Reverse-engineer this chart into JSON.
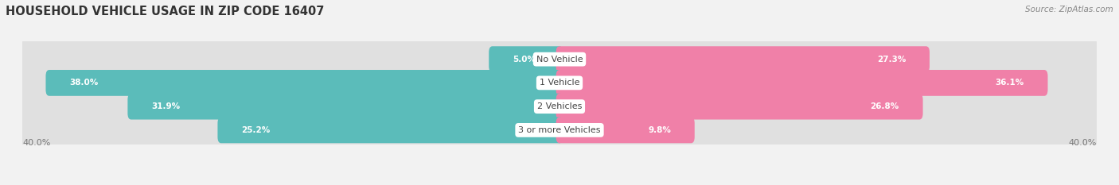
{
  "title": "HOUSEHOLD VEHICLE USAGE IN ZIP CODE 16407",
  "source": "Source: ZipAtlas.com",
  "categories": [
    "No Vehicle",
    "1 Vehicle",
    "2 Vehicles",
    "3 or more Vehicles"
  ],
  "owner_values": [
    5.0,
    38.0,
    31.9,
    25.2
  ],
  "renter_values": [
    27.3,
    36.1,
    26.8,
    9.8
  ],
  "owner_color": "#5bbcba",
  "renter_color": "#f080a8",
  "axis_label": "40.0%",
  "xlim": 40.0,
  "bg_color": "#f2f2f2",
  "bar_bg_color": "#e0e0e0",
  "title_fontsize": 10.5,
  "source_fontsize": 7.5,
  "bar_height": 0.58,
  "label_fontsize": 8.0,
  "value_fontsize": 7.5
}
